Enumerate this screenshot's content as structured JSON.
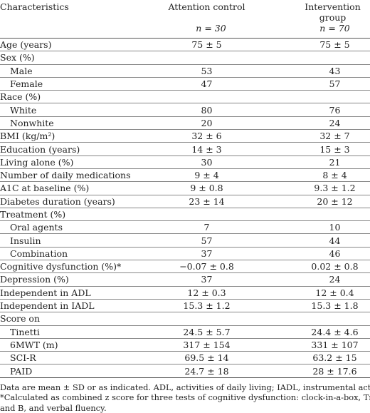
{
  "header": {
    "col1": "Characteristics",
    "col2": "Attention control",
    "col2_n": "n = 30",
    "col3": "Intervention group",
    "col3_n": "n = 70"
  },
  "rows": [
    {
      "label": "Age (years)",
      "sub": false,
      "v1": "75 ± 5",
      "v2": "75 ± 5"
    },
    {
      "label": "Sex (%)",
      "sub": false,
      "v1": "",
      "v2": ""
    },
    {
      "label": "Male",
      "sub": true,
      "v1": "53",
      "v2": "43"
    },
    {
      "label": "Female",
      "sub": true,
      "v1": "47",
      "v2": "57"
    },
    {
      "label": "Race (%)",
      "sub": false,
      "v1": "",
      "v2": ""
    },
    {
      "label": "White",
      "sub": true,
      "v1": "80",
      "v2": "76"
    },
    {
      "label": "Nonwhite",
      "sub": true,
      "v1": "20",
      "v2": "24"
    },
    {
      "label": "BMI (kg/m²)",
      "sub": false,
      "v1": "32 ± 6",
      "v2": "32 ± 7"
    },
    {
      "label": "Education (years)",
      "sub": false,
      "v1": "14 ± 3",
      "v2": "15 ± 3"
    },
    {
      "label": "Living alone (%)",
      "sub": false,
      "v1": "30",
      "v2": "21"
    },
    {
      "label": "Number of daily medications",
      "sub": false,
      "v1": "9 ± 4",
      "v2": "8 ± 4"
    },
    {
      "label": "A1C at baseline (%)",
      "sub": false,
      "v1": "9 ± 0.8",
      "v2": "9.3 ± 1.2"
    },
    {
      "label": "Diabetes duration (years)",
      "sub": false,
      "v1": "23 ± 14",
      "v2": "20 ± 12"
    },
    {
      "label": "Treatment (%)",
      "sub": false,
      "v1": "",
      "v2": ""
    },
    {
      "label": "Oral agents",
      "sub": true,
      "v1": "7",
      "v2": "10"
    },
    {
      "label": "Insulin",
      "sub": true,
      "v1": "57",
      "v2": "44"
    },
    {
      "label": "Combination",
      "sub": true,
      "v1": "37",
      "v2": "46"
    },
    {
      "label": "Cognitive dysfunction (%)*",
      "sub": false,
      "v1": "−0.07 ± 0.8",
      "v2": "0.02 ± 0.8"
    },
    {
      "label": "Depression (%)",
      "sub": false,
      "v1": "37",
      "v2": "24"
    },
    {
      "label": "Independent in ADL",
      "sub": false,
      "v1": "12 ± 0.3",
      "v2": "12 ± 0.4"
    },
    {
      "label": "Independent in IADL",
      "sub": false,
      "v1": "15.3 ± 1.2",
      "v2": "15.3 ± 1.8"
    },
    {
      "label": "Score on",
      "sub": false,
      "v1": "",
      "v2": ""
    },
    {
      "label": "Tinetti",
      "sub": true,
      "v1": "24.5 ± 5.7",
      "v2": "24.4 ± 4.6"
    },
    {
      "label": "6MWT (m)",
      "sub": true,
      "v1": "317 ± 154",
      "v2": "331 ± 107"
    },
    {
      "label": "SCI-R",
      "sub": true,
      "v1": "69.5 ± 14",
      "v2": "63.2 ± 15"
    },
    {
      "label": "PAID",
      "sub": true,
      "v1": "24.7 ± 18",
      "v2": "28 ± 17.6"
    }
  ],
  "footnotes": {
    "line1": "Data are mean ± SD or as indicated. ADL, activities of daily living; IADL, instrumental activities of daily living.",
    "line2": "*Calculated as combined z score for three tests of cognitive dysfunction: clock-in-a-box, Trail-Making Test A",
    "line3": "and B, and verbal fluency."
  }
}
